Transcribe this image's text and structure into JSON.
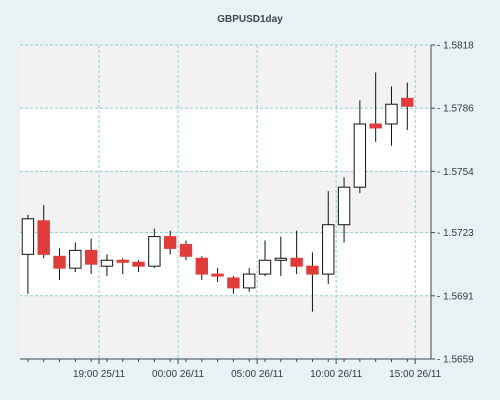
{
  "colors": {
    "background": "#e9f1f5",
    "plot_band_light": "#ffffff",
    "plot_band_shaded": "#f2f2f2",
    "grid": "#8fd0d0",
    "axis": "#3b4a55",
    "bull_fill": "#ffffff",
    "bear_fill": "#e03c3c",
    "wick": "#111111"
  },
  "chart_data": {
    "type": "candlestick",
    "title": "GBPUSD1day",
    "grid": true,
    "y_axis_position": "right",
    "ylim": [
      1.5659,
      1.5818
    ],
    "y_ticks": [
      1.5659,
      1.5691,
      1.5723,
      1.5754,
      1.5786,
      1.5818
    ],
    "y_tick_labels": [
      "1.5659",
      "1.5691",
      "1.5723",
      "1.5754",
      "1.5786",
      "1.5818"
    ],
    "x_ticks": [
      4.5,
      9.5,
      14.5,
      19.5,
      24.5
    ],
    "x_tick_labels": [
      "19:00 25/11",
      "00:00 26/11",
      "05:00 26/11",
      "10:00 26/11",
      "15:00 26/11"
    ],
    "xlim": [
      -0.5,
      25.5
    ],
    "candles": [
      {
        "open": 1.5712,
        "high": 1.5732,
        "low": 1.5692,
        "close": 1.573
      },
      {
        "open": 1.5729,
        "high": 1.5737,
        "low": 1.571,
        "close": 1.5712
      },
      {
        "open": 1.5711,
        "high": 1.5715,
        "low": 1.5699,
        "close": 1.5705
      },
      {
        "open": 1.5705,
        "high": 1.5718,
        "low": 1.5703,
        "close": 1.5714
      },
      {
        "open": 1.5714,
        "high": 1.572,
        "low": 1.5702,
        "close": 1.5707
      },
      {
        "open": 1.5706,
        "high": 1.5712,
        "low": 1.5701,
        "close": 1.5709
      },
      {
        "open": 1.5709,
        "high": 1.571,
        "low": 1.5702,
        "close": 1.5708
      },
      {
        "open": 1.5708,
        "high": 1.5709,
        "low": 1.5703,
        "close": 1.5706
      },
      {
        "open": 1.5706,
        "high": 1.5725,
        "low": 1.5705,
        "close": 1.5721
      },
      {
        "open": 1.5721,
        "high": 1.5724,
        "low": 1.5712,
        "close": 1.5715
      },
      {
        "open": 1.5717,
        "high": 1.5719,
        "low": 1.5709,
        "close": 1.5711
      },
      {
        "open": 1.571,
        "high": 1.5711,
        "low": 1.5699,
        "close": 1.5702
      },
      {
        "open": 1.5702,
        "high": 1.5705,
        "low": 1.5698,
        "close": 1.5701
      },
      {
        "open": 1.57,
        "high": 1.5701,
        "low": 1.5692,
        "close": 1.5695
      },
      {
        "open": 1.5695,
        "high": 1.5705,
        "low": 1.5693,
        "close": 1.5702
      },
      {
        "open": 1.5702,
        "high": 1.5719,
        "low": 1.5701,
        "close": 1.5709
      },
      {
        "open": 1.5709,
        "high": 1.5721,
        "low": 1.5701,
        "close": 1.571
      },
      {
        "open": 1.571,
        "high": 1.5724,
        "low": 1.5702,
        "close": 1.5706
      },
      {
        "open": 1.5706,
        "high": 1.5713,
        "low": 1.5683,
        "close": 1.5702
      },
      {
        "open": 1.5702,
        "high": 1.5744,
        "low": 1.5697,
        "close": 1.5727
      },
      {
        "open": 1.5727,
        "high": 1.5751,
        "low": 1.5718,
        "close": 1.5746
      },
      {
        "open": 1.5746,
        "high": 1.579,
        "low": 1.5743,
        "close": 1.5778
      },
      {
        "open": 1.5778,
        "high": 1.5804,
        "low": 1.5769,
        "close": 1.5776
      },
      {
        "open": 1.5778,
        "high": 1.5797,
        "low": 1.5767,
        "close": 1.5788
      },
      {
        "open": 1.5791,
        "high": 1.5799,
        "low": 1.5775,
        "close": 1.5787
      }
    ]
  }
}
